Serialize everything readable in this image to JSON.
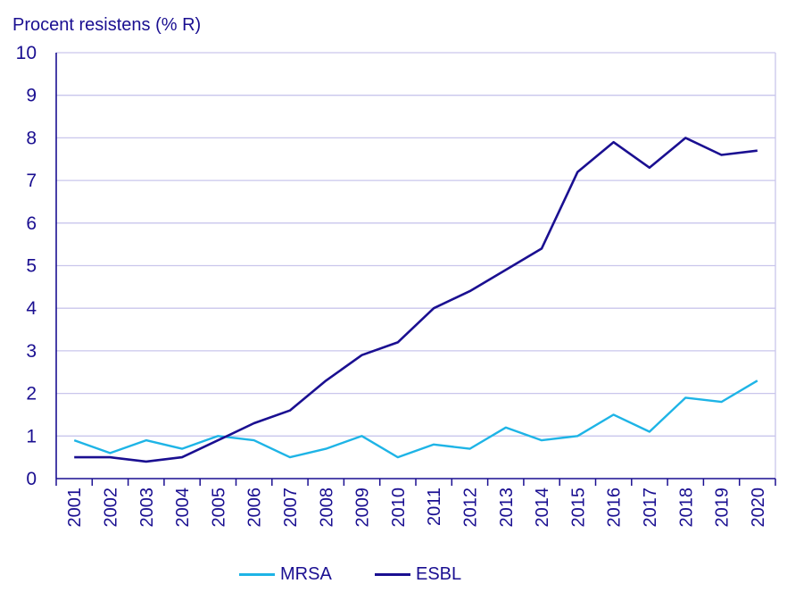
{
  "chart_data": {
    "type": "line",
    "title": "",
    "ylabel": "Procent resistens (% R)",
    "xlabel": "",
    "x": [
      "2001",
      "2002",
      "2003",
      "2004",
      "2005",
      "2006",
      "2007",
      "2008",
      "2009",
      "2010",
      "2011",
      "2012",
      "2013",
      "2014",
      "2015",
      "2016",
      "2017",
      "2018",
      "2019",
      "2020"
    ],
    "ylim": [
      0,
      10
    ],
    "yticks": [
      "0",
      "1",
      "2",
      "3",
      "4",
      "5",
      "6",
      "7",
      "8",
      "9",
      "10"
    ],
    "grid": true,
    "legend_position": "bottom",
    "series": [
      {
        "name": "MRSA",
        "color": "#1eb4e6",
        "values": [
          0.9,
          0.6,
          0.9,
          0.7,
          1.0,
          0.9,
          0.5,
          0.7,
          1.0,
          0.5,
          0.8,
          0.7,
          1.2,
          0.9,
          1.0,
          1.5,
          1.1,
          1.9,
          1.8,
          2.3
        ]
      },
      {
        "name": "ESBL",
        "color": "#1a0f91",
        "values": [
          0.5,
          0.5,
          0.4,
          0.5,
          0.9,
          1.3,
          1.6,
          2.3,
          2.9,
          3.2,
          4.0,
          4.4,
          4.9,
          5.4,
          7.2,
          7.9,
          7.3,
          8.0,
          7.6,
          7.7
        ]
      }
    ]
  }
}
